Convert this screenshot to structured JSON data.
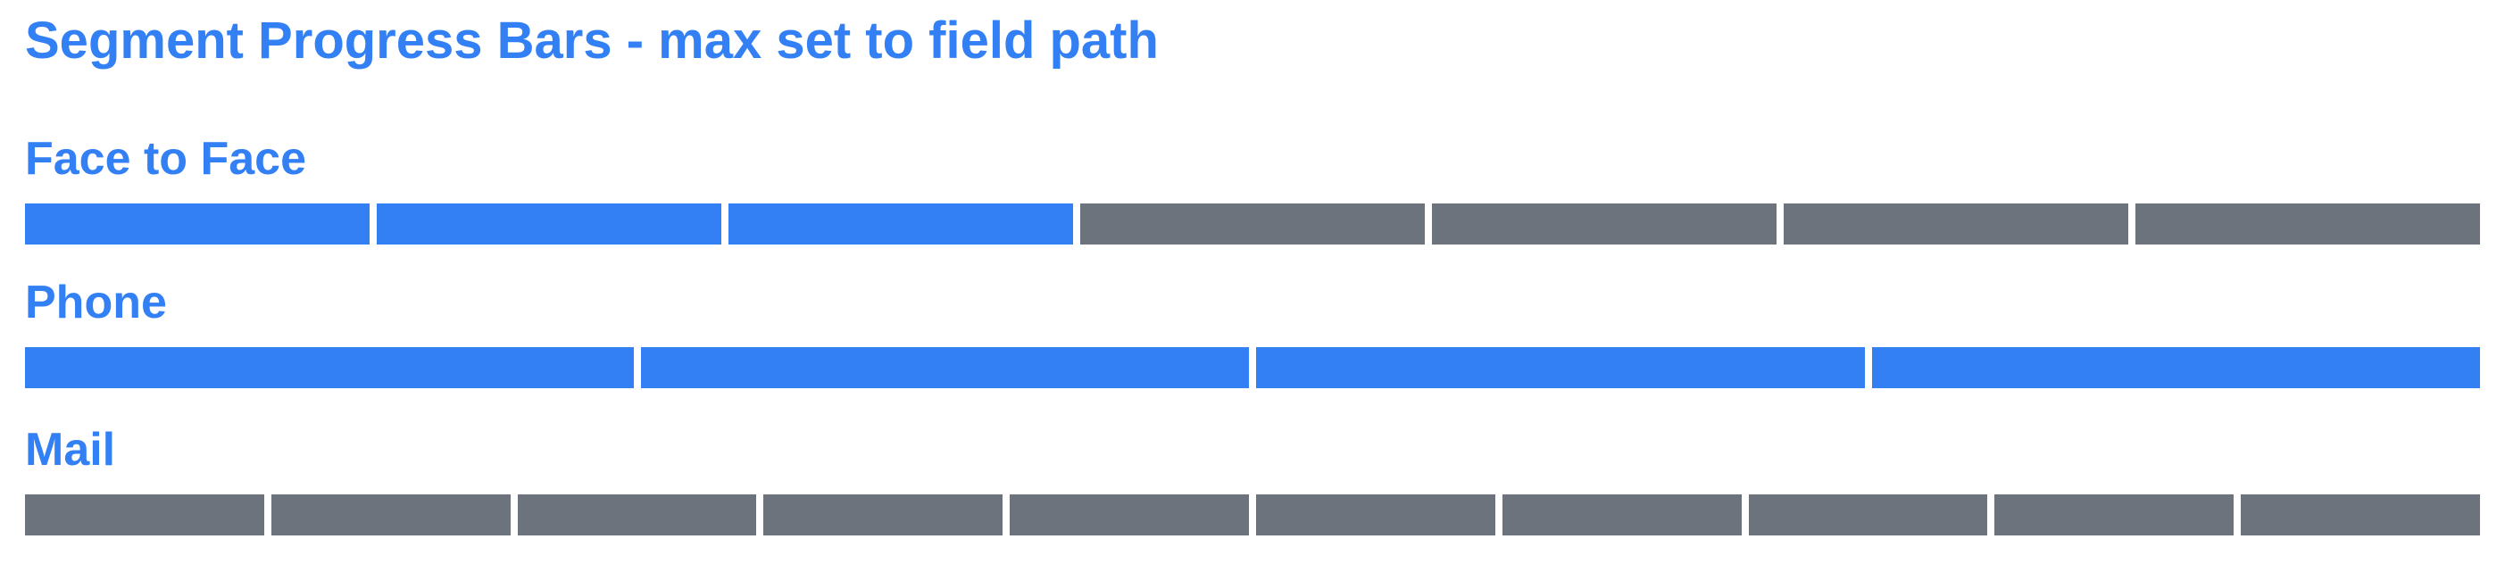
{
  "title": "Segment Progress Bars - max set to field path",
  "colors": {
    "accent": "#3380f4",
    "filled": "#3380f4",
    "empty": "#6d737c"
  },
  "bars": [
    {
      "label": "Face to Face",
      "value": 3,
      "max": 7
    },
    {
      "label": "Phone",
      "value": 4,
      "max": 4
    },
    {
      "label": "Mail",
      "value": 0,
      "max": 10
    }
  ]
}
